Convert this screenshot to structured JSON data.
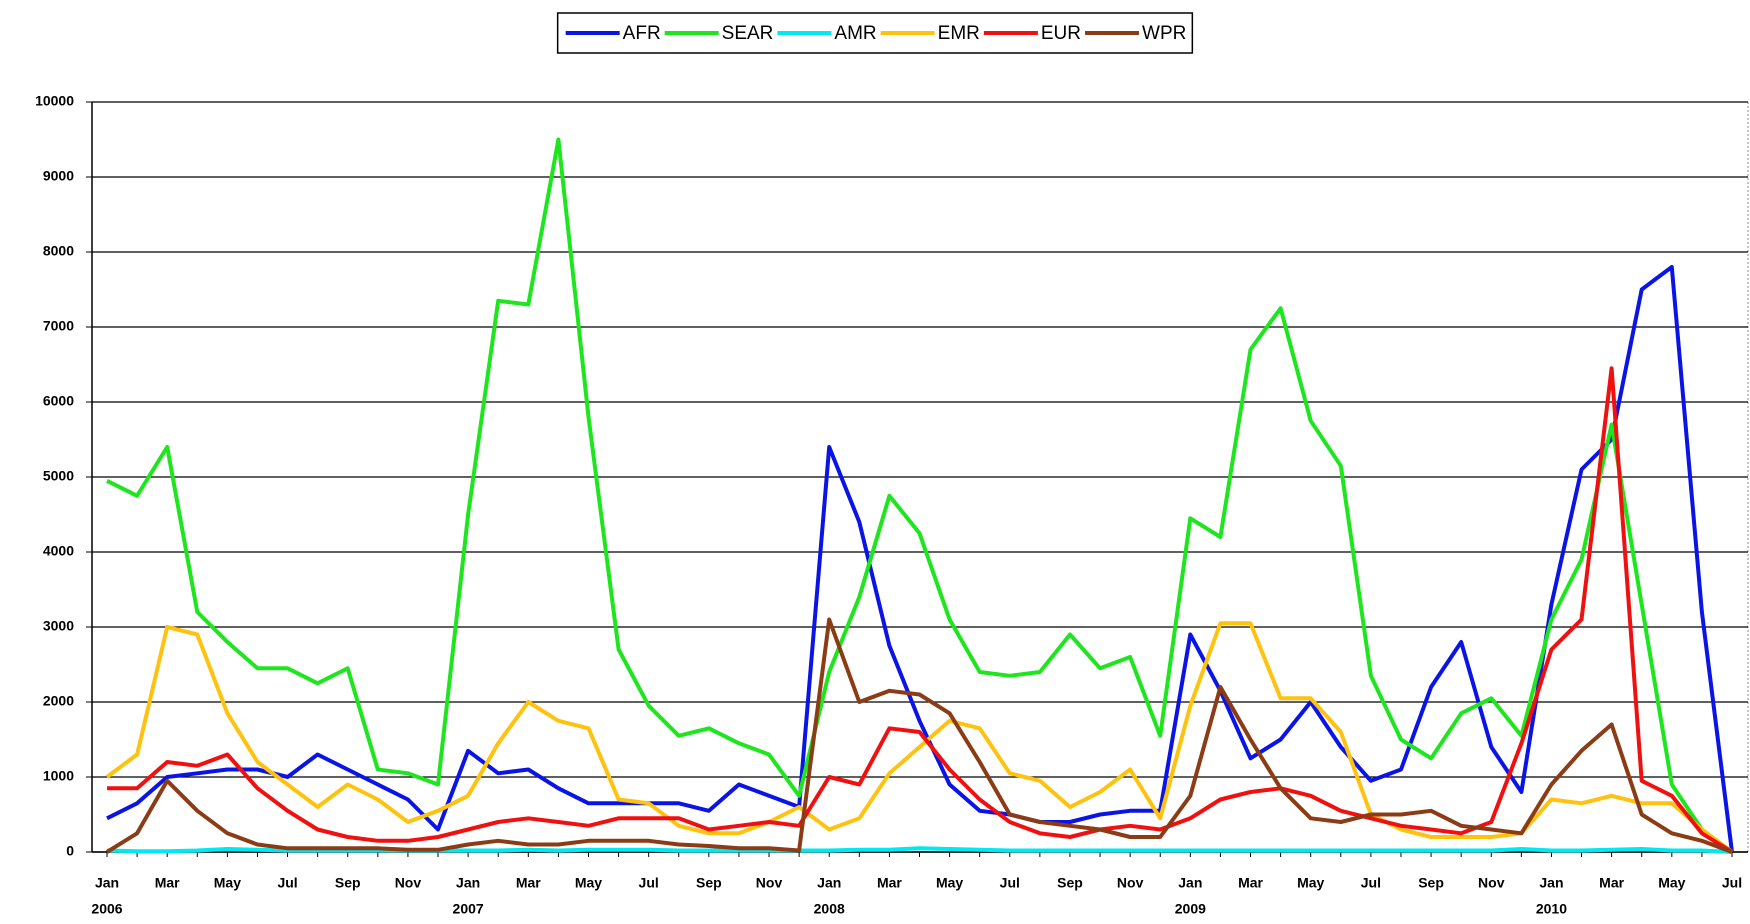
{
  "chart_data": {
    "type": "line",
    "categories": [
      "Jan",
      null,
      "Mar",
      null,
      "May",
      null,
      "Jul",
      null,
      "Sep",
      null,
      "Nov",
      null,
      "Jan",
      null,
      "Mar",
      null,
      "May",
      null,
      "Jul",
      null,
      "Sep",
      null,
      "Nov",
      null,
      "Jan",
      null,
      "Mar",
      null,
      "May",
      null,
      "Jul",
      null,
      "Sep",
      null,
      "Nov",
      null,
      "Jan",
      null,
      "Mar",
      null,
      "May",
      null,
      "Jul",
      null,
      "Sep",
      null,
      "Nov",
      null,
      "Jan",
      null,
      "Mar",
      null,
      "May",
      null,
      "Jul"
    ],
    "years": [
      "2006",
      null,
      null,
      null,
      null,
      null,
      null,
      null,
      null,
      null,
      null,
      null,
      "2007",
      null,
      null,
      null,
      null,
      null,
      null,
      null,
      null,
      null,
      null,
      null,
      "2008",
      null,
      null,
      null,
      null,
      null,
      null,
      null,
      null,
      null,
      null,
      null,
      "2009",
      null,
      null,
      null,
      null,
      null,
      null,
      null,
      null,
      null,
      null,
      null,
      "2010",
      null,
      null,
      null,
      null,
      null,
      null
    ],
    "series": [
      {
        "name": "AFR",
        "color": "#0a14e6",
        "values": [
          450,
          650,
          1000,
          1050,
          1100,
          1100,
          1000,
          1300,
          1100,
          900,
          700,
          300,
          1350,
          1050,
          1100,
          850,
          650,
          650,
          650,
          650,
          550,
          900,
          750,
          600,
          5400,
          4400,
          2750,
          1750,
          900,
          550,
          500,
          400,
          400,
          500,
          550,
          550,
          2900,
          2150,
          1250,
          1500,
          2000,
          1400,
          950,
          1100,
          2200,
          2800,
          1400,
          800,
          3300,
          5100,
          5500,
          7500,
          7800,
          3200,
          0
        ]
      },
      {
        "name": "SEAR",
        "color": "#1ee61e",
        "values": [
          4950,
          4750,
          5400,
          3200,
          2800,
          2450,
          2450,
          2250,
          2450,
          1100,
          1050,
          900,
          4500,
          7350,
          7300,
          9500,
          5800,
          2700,
          1950,
          1550,
          1650,
          1450,
          1300,
          750,
          2400,
          3400,
          4750,
          4250,
          3100,
          2400,
          2350,
          2400,
          2900,
          2450,
          2600,
          1550,
          4450,
          4200,
          6700,
          7250,
          5750,
          5150,
          2350,
          1500,
          1250,
          1850,
          2050,
          1550,
          3100,
          3900,
          5700,
          3300,
          900,
          300,
          0
        ]
      },
      {
        "name": "AMR",
        "color": "#00e8f0",
        "values": [
          20,
          10,
          10,
          20,
          40,
          30,
          20,
          20,
          20,
          20,
          20,
          20,
          20,
          20,
          30,
          20,
          30,
          30,
          30,
          20,
          20,
          20,
          20,
          20,
          20,
          30,
          30,
          50,
          40,
          30,
          20,
          20,
          20,
          20,
          20,
          20,
          20,
          20,
          20,
          20,
          20,
          20,
          20,
          20,
          20,
          20,
          20,
          40,
          20,
          20,
          30,
          40,
          20,
          20,
          0
        ]
      },
      {
        "name": "EMR",
        "color": "#ffc20e",
        "values": [
          1000,
          1300,
          3000,
          2900,
          1850,
          1200,
          900,
          600,
          900,
          700,
          400,
          550,
          750,
          1450,
          2000,
          1750,
          1650,
          700,
          650,
          350,
          250,
          250,
          400,
          600,
          300,
          450,
          1050,
          1400,
          1750,
          1650,
          1050,
          950,
          600,
          800,
          1100,
          450,
          1950,
          3050,
          3050,
          2050,
          2050,
          1600,
          500,
          300,
          200,
          200,
          200,
          250,
          700,
          650,
          750,
          650,
          650,
          300,
          0
        ]
      },
      {
        "name": "EUR",
        "color": "#f01010",
        "values": [
          850,
          850,
          1200,
          1150,
          1300,
          850,
          550,
          300,
          200,
          150,
          150,
          200,
          300,
          400,
          450,
          400,
          350,
          450,
          450,
          450,
          300,
          350,
          400,
          350,
          1000,
          900,
          1650,
          1600,
          1100,
          700,
          400,
          250,
          200,
          300,
          350,
          300,
          450,
          700,
          800,
          850,
          750,
          550,
          450,
          350,
          300,
          250,
          400,
          1450,
          2700,
          3100,
          6450,
          950,
          750,
          250,
          0
        ]
      },
      {
        "name": "WPR",
        "color": "#8c3c14",
        "values": [
          0,
          250,
          950,
          550,
          250,
          100,
          50,
          50,
          50,
          50,
          30,
          30,
          100,
          150,
          100,
          100,
          150,
          150,
          150,
          100,
          80,
          50,
          50,
          20,
          3100,
          2000,
          2150,
          2100,
          1850,
          1200,
          500,
          400,
          350,
          300,
          200,
          200,
          750,
          2200,
          1500,
          850,
          450,
          400,
          500,
          500,
          550,
          350,
          300,
          250,
          900,
          1350,
          1700,
          500,
          250,
          150,
          0
        ]
      }
    ],
    "ylim": [
      0,
      10000
    ],
    "yticks": [
      0,
      1000,
      2000,
      3000,
      4000,
      5000,
      6000,
      7000,
      8000,
      9000,
      10000
    ],
    "grid": true,
    "legend": "top"
  }
}
